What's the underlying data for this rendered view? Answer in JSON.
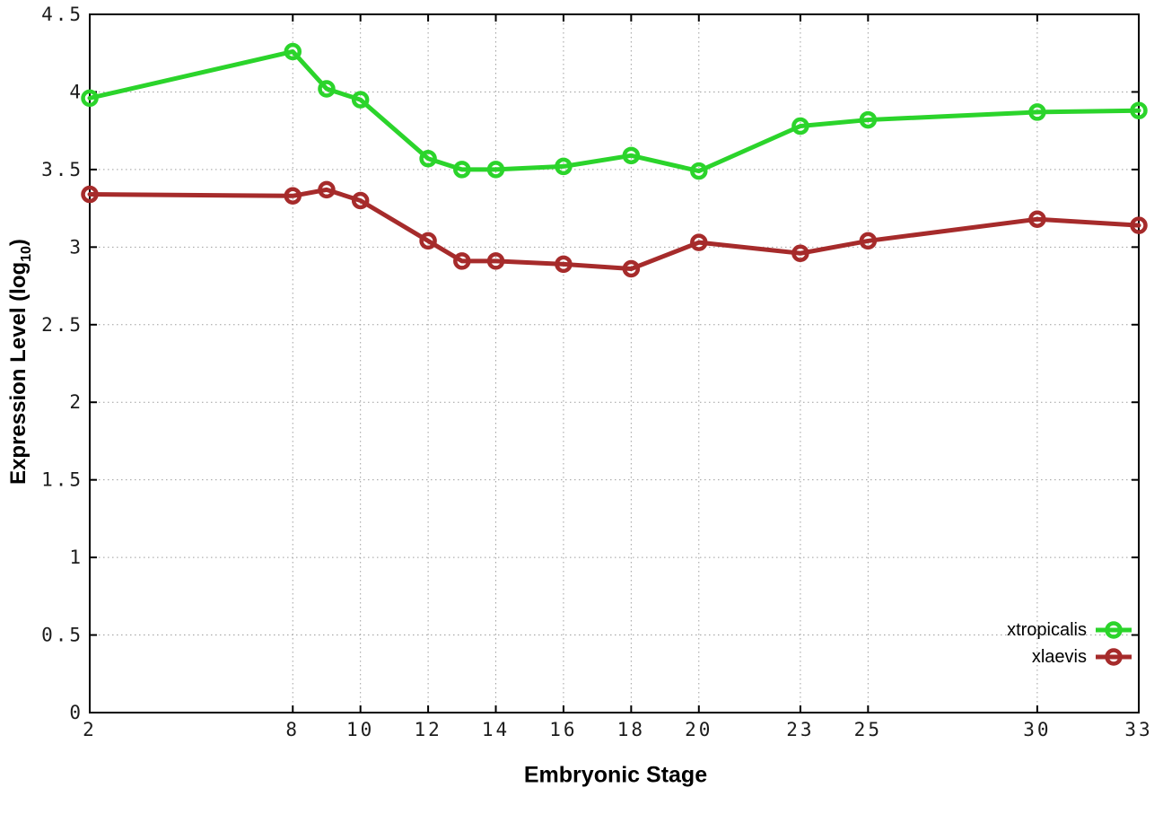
{
  "labels": {
    "x_axis": "Embryonic Stage",
    "y_axis_prefix": "Expression Level (log",
    "y_axis_sub": "10",
    "y_axis_suffix": ")"
  },
  "colors": {
    "background": "#ffffff",
    "plot_border": "#000000",
    "grid": "#9e9e9e",
    "tick_text": "#1c1c1c",
    "xtropicalis": "#2BD42B",
    "xlaevis": "#A62B2B"
  },
  "chart_data": {
    "type": "line",
    "title": "",
    "xlabel": "Embryonic Stage",
    "ylabel": "Expression Level (log10)",
    "xlim": [
      2,
      33
    ],
    "ylim": [
      0,
      4.5
    ],
    "grid": true,
    "grid_style": "dotted",
    "legend_position": "bottom-right",
    "marker": "open-circle",
    "x_ticks": [
      2,
      8,
      10,
      12,
      14,
      16,
      18,
      20,
      23,
      25,
      30,
      33
    ],
    "x_tick_labels": [
      "2",
      "8",
      "10",
      "12",
      "14",
      "16",
      "18",
      "20",
      "23",
      "25",
      "30",
      "33"
    ],
    "y_ticks": [
      0,
      0.5,
      1,
      1.5,
      2,
      2.5,
      3,
      3.5,
      4,
      4.5
    ],
    "y_tick_labels": [
      "0",
      "0.5",
      "1",
      "1.5",
      "2",
      "2.5",
      "3",
      "3.5",
      "4",
      "4.5"
    ],
    "x": [
      2,
      8,
      9,
      10,
      12,
      13,
      14,
      16,
      18,
      20,
      23,
      25,
      30,
      33
    ],
    "series": [
      {
        "name": "xtropicalis",
        "color": "#2BD42B",
        "values": [
          3.96,
          4.26,
          4.02,
          3.95,
          3.57,
          3.5,
          3.5,
          3.52,
          3.59,
          3.49,
          3.78,
          3.82,
          3.87,
          3.88
        ]
      },
      {
        "name": "xlaevis",
        "color": "#A62B2B",
        "values": [
          3.34,
          3.33,
          3.37,
          3.3,
          3.04,
          2.91,
          2.91,
          2.89,
          2.86,
          3.03,
          2.96,
          3.04,
          3.18,
          3.14
        ]
      }
    ]
  }
}
